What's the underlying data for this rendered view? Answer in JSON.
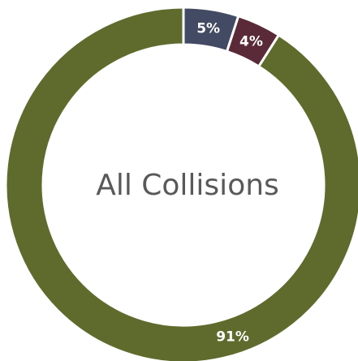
{
  "chart_data": {
    "type": "pie",
    "donut": true,
    "center_label": "All Collisions",
    "start": "top",
    "direction": "counterclockwise",
    "slices": [
      {
        "label": "91%",
        "value": 91,
        "color": "#5f6b2c"
      },
      {
        "label": "4%",
        "value": 4,
        "color": "#5a2a38"
      },
      {
        "label": "5%",
        "value": 5,
        "color": "#434a63"
      }
    ],
    "legend": "none"
  }
}
